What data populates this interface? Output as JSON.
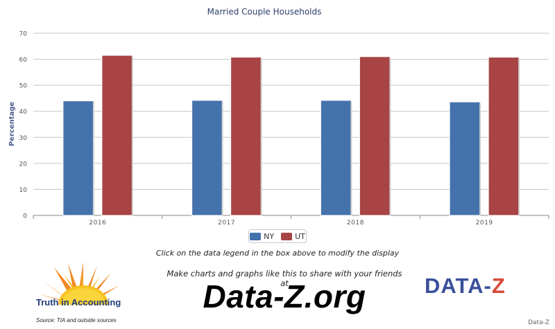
{
  "chart_data": {
    "type": "bar",
    "title": "Married Couple Households",
    "xlabel": "",
    "ylabel": "Percentage",
    "ylim": [
      0,
      70
    ],
    "yticks": [
      0,
      10,
      20,
      30,
      40,
      50,
      60,
      70
    ],
    "grid": true,
    "legend_placement": "bottom-center",
    "categories": [
      "2016",
      "2017",
      "2018",
      "2019"
    ],
    "series": [
      {
        "name": "NY",
        "color": "#4472ab",
        "values": [
          44.0,
          44.2,
          44.2,
          43.6
        ]
      },
      {
        "name": "UT",
        "color": "#a84444",
        "values": [
          61.5,
          60.8,
          61.0,
          60.8
        ]
      }
    ]
  },
  "footer": {
    "hint": "Click on the data legend in the box above to modify the display",
    "make_charts": "Make charts and graphs like this to share with your friends at",
    "site": "Data-Z.org",
    "tia_name": "Truth in Accounting",
    "source": "Source: TIA and outside sources",
    "dataz_logo_left": "DATA-",
    "dataz_logo_right": "Z",
    "credit": "Data-Z"
  }
}
